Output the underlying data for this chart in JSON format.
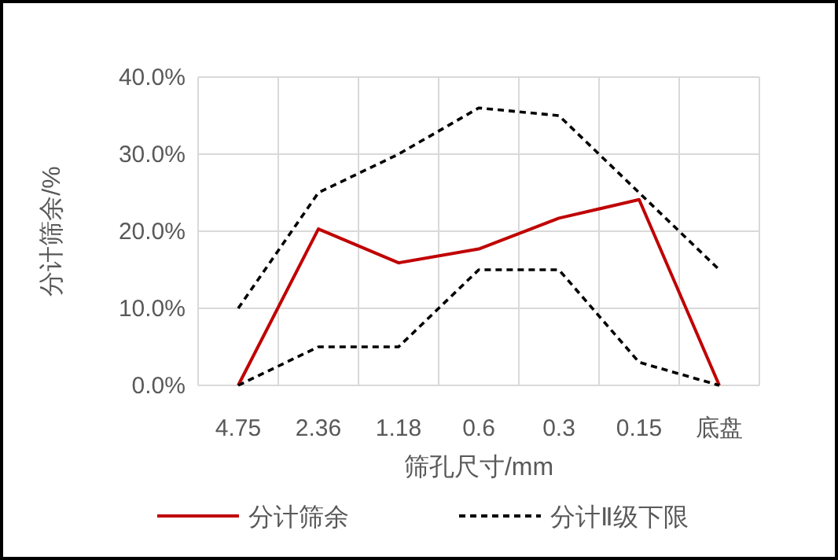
{
  "chart_data": {
    "type": "line",
    "xlabel": "筛孔尺寸/mm",
    "ylabel": "分计筛余/%",
    "categories": [
      "4.75",
      "2.36",
      "1.18",
      "0.6",
      "0.3",
      "0.15",
      "底盘"
    ],
    "series": [
      {
        "name": "分计筛余",
        "color": "#c00000",
        "line_style": "solid",
        "values": [
          0,
          20.3,
          15.9,
          17.7,
          21.7,
          24.1,
          0
        ]
      },
      {
        "color": "#000000",
        "line_style": "dashed",
        "values": [
          10,
          25,
          30,
          36,
          35,
          25,
          15
        ]
      },
      {
        "name": "分计Ⅱ级下限",
        "color": "#000000",
        "line_style": "dashed",
        "values": [
          0,
          5,
          5,
          15,
          15,
          3,
          0
        ]
      }
    ],
    "ylim": [
      0,
      40
    ],
    "yticks": [
      {
        "value": 0,
        "label": "0.0%"
      },
      {
        "value": 10,
        "label": "10.0%"
      },
      {
        "value": 20,
        "label": "20.0%"
      },
      {
        "value": 30,
        "label": "30.0%"
      },
      {
        "value": 40,
        "label": "40.0%"
      }
    ],
    "grid": true,
    "legend": "bottom",
    "marker": "none"
  }
}
